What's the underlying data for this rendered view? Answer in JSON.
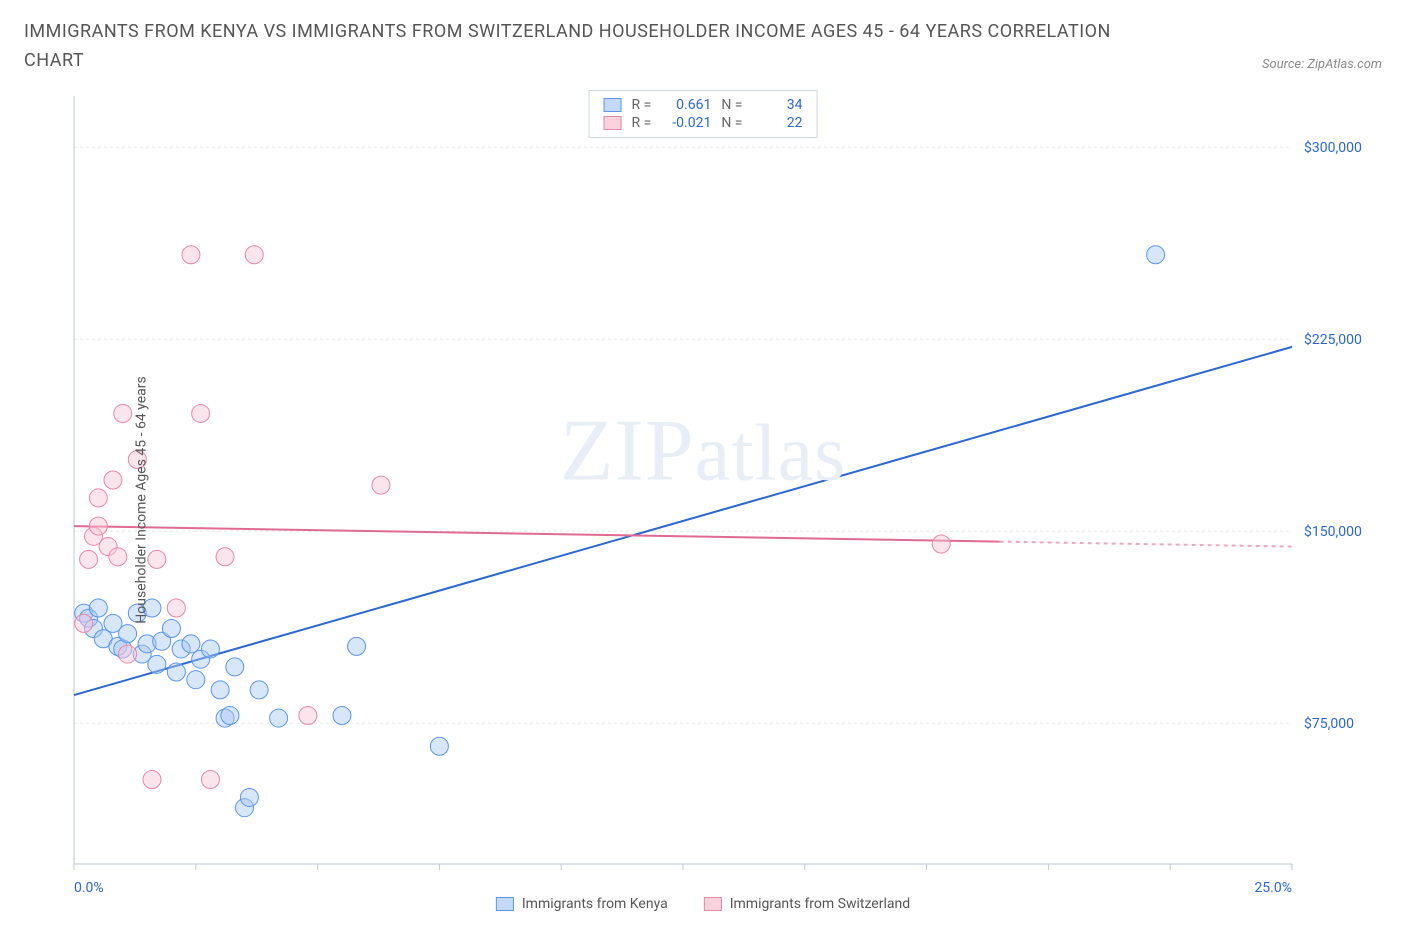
{
  "title": "IMMIGRANTS FROM KENYA VS IMMIGRANTS FROM SWITZERLAND HOUSEHOLDER INCOME AGES 45 - 64 YEARS CORRELATION CHART",
  "source": "Source: ZipAtlas.com",
  "ylabel": "Householder Income Ages 45 - 64 years",
  "watermark_a": "ZIP",
  "watermark_b": "atlas",
  "chart": {
    "type": "scatter",
    "xlim": [
      0,
      25
    ],
    "ylim": [
      20000,
      320000
    ],
    "xticks": [
      0,
      2.5,
      5,
      7.5,
      10,
      12.5,
      15,
      17.5,
      20,
      22.5,
      25
    ],
    "xtick_labels_shown": {
      "0": "0.0%",
      "25": "25.0%"
    },
    "yticks": [
      75000,
      150000,
      225000,
      300000
    ],
    "ytick_labels": [
      "$75,000",
      "$150,000",
      "$225,000",
      "$300,000"
    ],
    "grid_color": "#e4e8ef",
    "axis_color": "#bcc6d6",
    "background": "#ffffff",
    "label_color_x": "#2a66d6",
    "label_color_y": "#2a66d6",
    "label_fontsize": 14,
    "point_radius": 9,
    "point_opacity": 0.45,
    "series": [
      {
        "name": "Immigrants from Kenya",
        "color_fill": "#a8c7f2",
        "color_stroke": "#5a96f0",
        "R": 0.661,
        "N": 34,
        "points": [
          [
            0.2,
            118000
          ],
          [
            0.3,
            116000
          ],
          [
            0.4,
            112000
          ],
          [
            0.5,
            120000
          ],
          [
            0.6,
            108000
          ],
          [
            0.8,
            114000
          ],
          [
            0.9,
            105000
          ],
          [
            1.0,
            104000
          ],
          [
            1.1,
            110000
          ],
          [
            1.3,
            118000
          ],
          [
            1.4,
            102000
          ],
          [
            1.5,
            106000
          ],
          [
            1.6,
            120000
          ],
          [
            1.7,
            98000
          ],
          [
            1.8,
            107000
          ],
          [
            2.0,
            112000
          ],
          [
            2.1,
            95000
          ],
          [
            2.2,
            104000
          ],
          [
            2.4,
            106000
          ],
          [
            2.5,
            92000
          ],
          [
            2.6,
            100000
          ],
          [
            2.8,
            104000
          ],
          [
            3.0,
            88000
          ],
          [
            3.1,
            77000
          ],
          [
            3.2,
            78000
          ],
          [
            3.3,
            97000
          ],
          [
            3.5,
            42000
          ],
          [
            3.6,
            46000
          ],
          [
            3.8,
            88000
          ],
          [
            4.2,
            77000
          ],
          [
            5.5,
            78000
          ],
          [
            5.8,
            105000
          ],
          [
            7.5,
            66000
          ],
          [
            22.2,
            258000
          ]
        ],
        "trend": {
          "x1": 0,
          "y1": 86000,
          "x2": 25,
          "y2": 222000,
          "color": "#2a66d6",
          "width": 2
        }
      },
      {
        "name": "Immigrants from Switzerland",
        "color_fill": "#f6c6d6",
        "color_stroke": "#e986a6",
        "R": -0.021,
        "N": 22,
        "points": [
          [
            0.2,
            114000
          ],
          [
            0.3,
            139000
          ],
          [
            0.4,
            148000
          ],
          [
            0.5,
            152000
          ],
          [
            0.5,
            163000
          ],
          [
            0.7,
            144000
          ],
          [
            0.8,
            170000
          ],
          [
            0.9,
            140000
          ],
          [
            1.0,
            196000
          ],
          [
            1.1,
            102000
          ],
          [
            1.3,
            178000
          ],
          [
            1.6,
            53000
          ],
          [
            1.7,
            139000
          ],
          [
            2.1,
            120000
          ],
          [
            2.4,
            258000
          ],
          [
            2.6,
            196000
          ],
          [
            2.8,
            53000
          ],
          [
            3.1,
            140000
          ],
          [
            3.7,
            258000
          ],
          [
            4.8,
            78000
          ],
          [
            6.3,
            168000
          ],
          [
            17.8,
            145000
          ]
        ],
        "trend": {
          "x1": 0,
          "y1": 152000,
          "x2": 25,
          "y2": 144000,
          "color": "#e06a92",
          "width": 2,
          "dash_after_x": 19
        }
      }
    ],
    "legend_top": [
      {
        "swatch": "blue",
        "r_label": "R =",
        "r": "0.661",
        "n_label": "N =",
        "n": "34"
      },
      {
        "swatch": "pink",
        "r_label": "R =",
        "r": "-0.021",
        "n_label": "N =",
        "n": "22"
      }
    ],
    "legend_bottom": [
      {
        "swatch": "blue",
        "label": "Immigrants from Kenya"
      },
      {
        "swatch": "pink",
        "label": "Immigrants from Switzerland"
      }
    ]
  }
}
